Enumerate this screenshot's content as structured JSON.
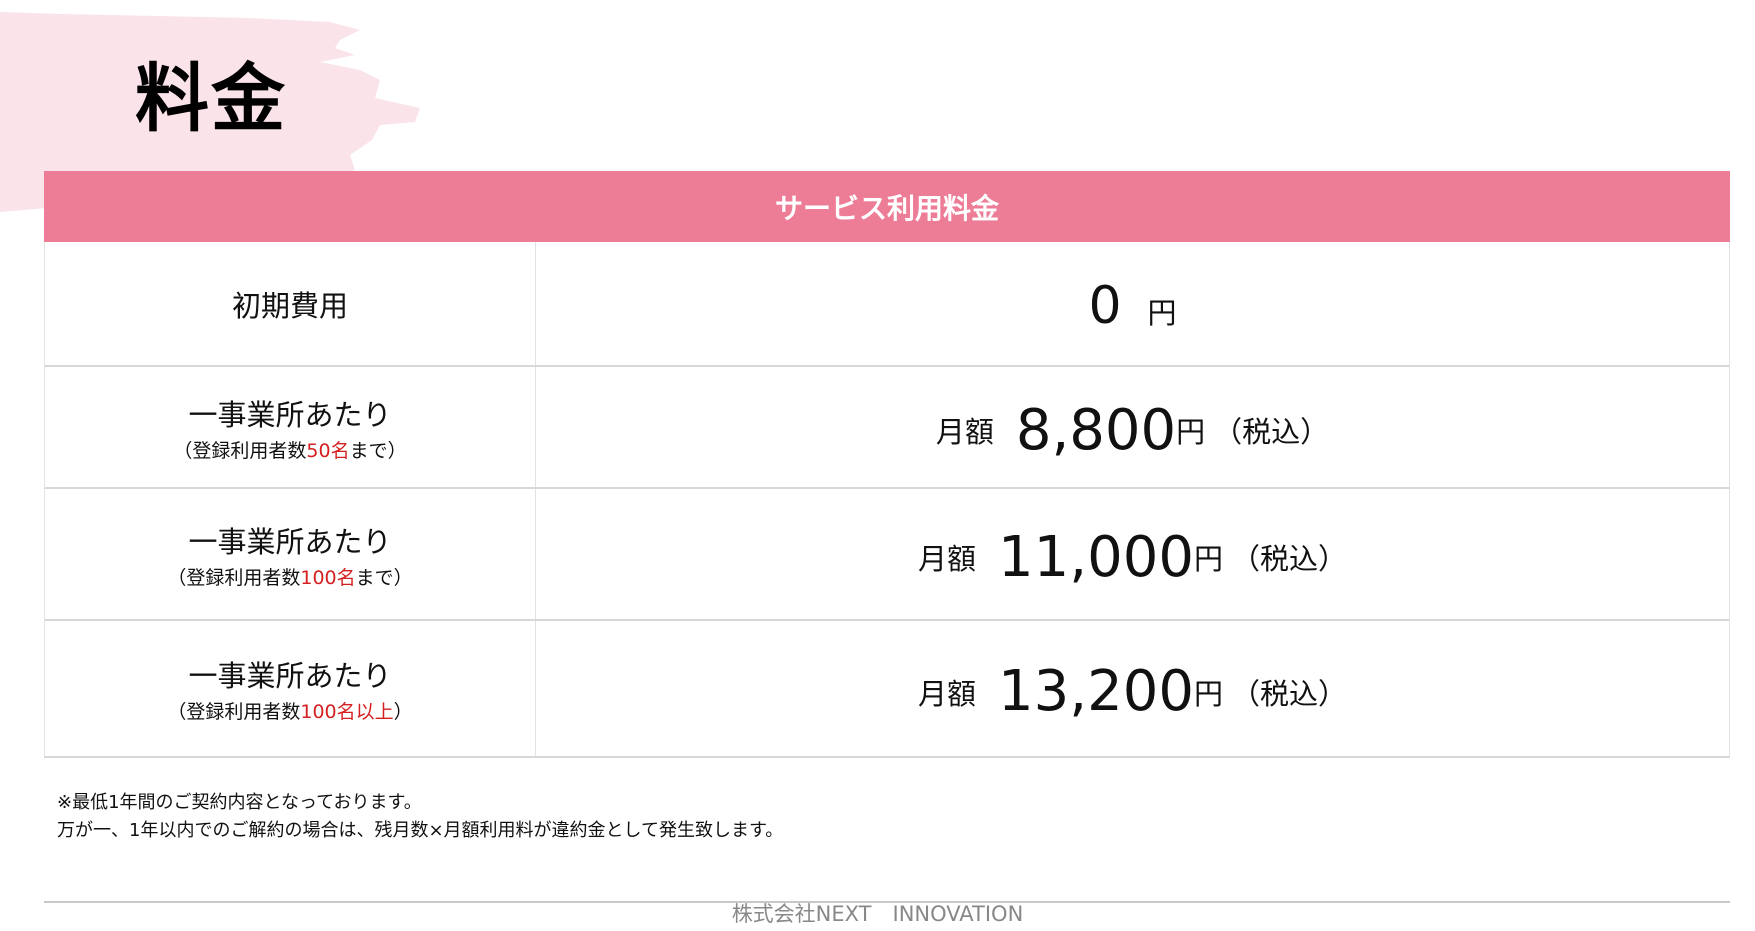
{
  "page": {
    "title": "料金"
  },
  "colors": {
    "header": "#ED7C96",
    "brush": "#FAE3E9",
    "highlight": "#d42020"
  },
  "table": {
    "header": "サービス利用料金",
    "initial": {
      "label": "初期費用",
      "amount": "0",
      "unit": "円"
    },
    "plans": [
      {
        "label": "一事業所あたり",
        "sub_prefix": "（登録利用者数",
        "sub_highlight": "50名",
        "sub_suffix": "まで）",
        "monthly": "月額",
        "amount": "8,800",
        "unit": "円",
        "tax": "（税込）"
      },
      {
        "label": "一事業所あたり",
        "sub_prefix": "（登録利用者数",
        "sub_highlight": "100名",
        "sub_suffix": "まで）",
        "monthly": "月額",
        "amount": "11,000",
        "unit": "円",
        "tax": "（税込）"
      },
      {
        "label": "一事業所あたり",
        "sub_prefix": "（登録利用者数",
        "sub_highlight": "100名以上",
        "sub_suffix": "）",
        "monthly": "月額",
        "amount": "13,200",
        "unit": "円",
        "tax": "（税込）"
      }
    ]
  },
  "notes": [
    "※最低1年間のご契約内容となっております。",
    "万が一、1年以内でのご解約の場合は、残月数×月額利用料が違約金として発生致します。"
  ],
  "footer": "株式会社NEXT　INNOVATION"
}
